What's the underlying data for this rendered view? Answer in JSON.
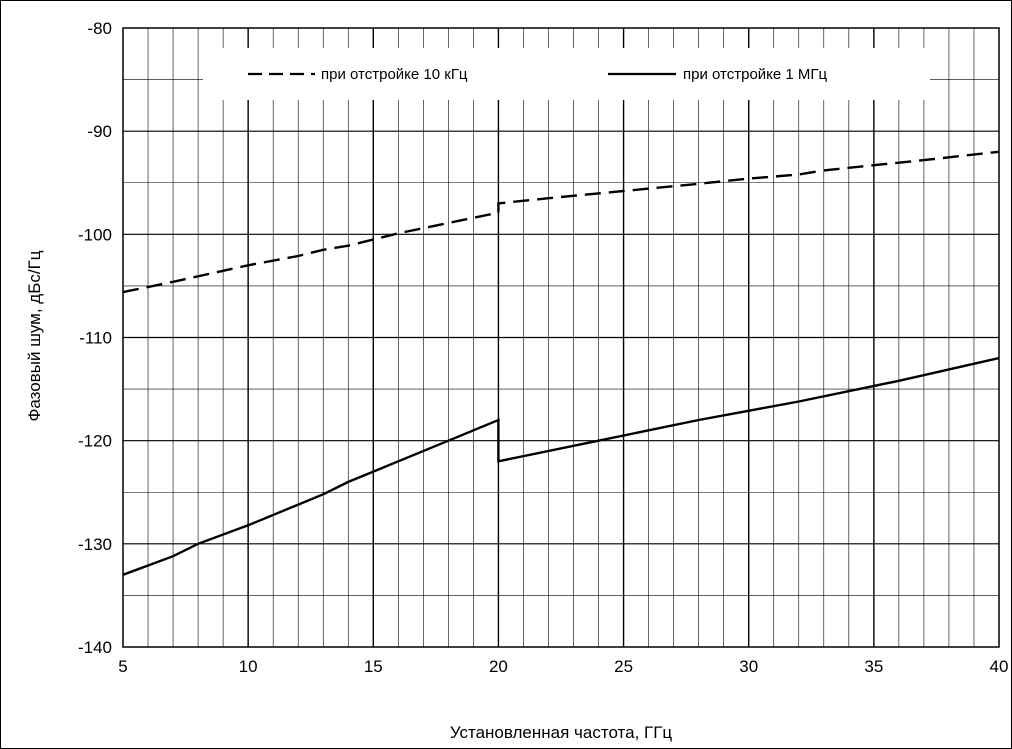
{
  "chart_data": {
    "type": "line",
    "title": "",
    "xlabel": "Установленная частота,  ГГц",
    "ylabel": "Фазовый шум,  дБс/Гц",
    "xlim": [
      5,
      40
    ],
    "ylim": [
      -140,
      -80
    ],
    "x_ticks": [
      "5",
      "10",
      "15",
      "20",
      "25",
      "30",
      "35",
      "40"
    ],
    "y_ticks": [
      "-80",
      "-90",
      "-100",
      "-110",
      "-120",
      "-130",
      "-140"
    ],
    "grid": true,
    "legend_position": "top",
    "series": [
      {
        "name": "при отстройке 10 кГц",
        "style": "dashed",
        "color": "#000000",
        "points": [
          [
            5,
            -105.6
          ],
          [
            7,
            -104.6
          ],
          [
            10,
            -103.0
          ],
          [
            12,
            -102.1
          ],
          [
            13,
            -101.5
          ],
          [
            14,
            -101.1
          ],
          [
            16,
            -99.9
          ],
          [
            18,
            -98.9
          ],
          [
            19,
            -98.4
          ],
          [
            20,
            -97.9
          ],
          [
            20,
            -97.0
          ],
          [
            22,
            -96.5
          ],
          [
            25,
            -95.8
          ],
          [
            28,
            -95.1
          ],
          [
            30,
            -94.6
          ],
          [
            32,
            -94.2
          ],
          [
            33,
            -93.8
          ],
          [
            35,
            -93.3
          ],
          [
            37,
            -92.8
          ],
          [
            40,
            -92.0
          ]
        ]
      },
      {
        "name": "при отстройке 1 МГц",
        "style": "solid",
        "color": "#000000",
        "points": [
          [
            5,
            -133.0
          ],
          [
            7,
            -131.2
          ],
          [
            8,
            -130.0
          ],
          [
            10,
            -128.2
          ],
          [
            12,
            -126.2
          ],
          [
            13,
            -125.2
          ],
          [
            14,
            -124.0
          ],
          [
            16,
            -122.0
          ],
          [
            18,
            -120.0
          ],
          [
            20,
            -118.0
          ],
          [
            20,
            -122.0
          ],
          [
            24,
            -120.0
          ],
          [
            28,
            -118.0
          ],
          [
            32,
            -116.2
          ],
          [
            36,
            -114.2
          ],
          [
            40,
            -112.0
          ]
        ]
      }
    ]
  }
}
